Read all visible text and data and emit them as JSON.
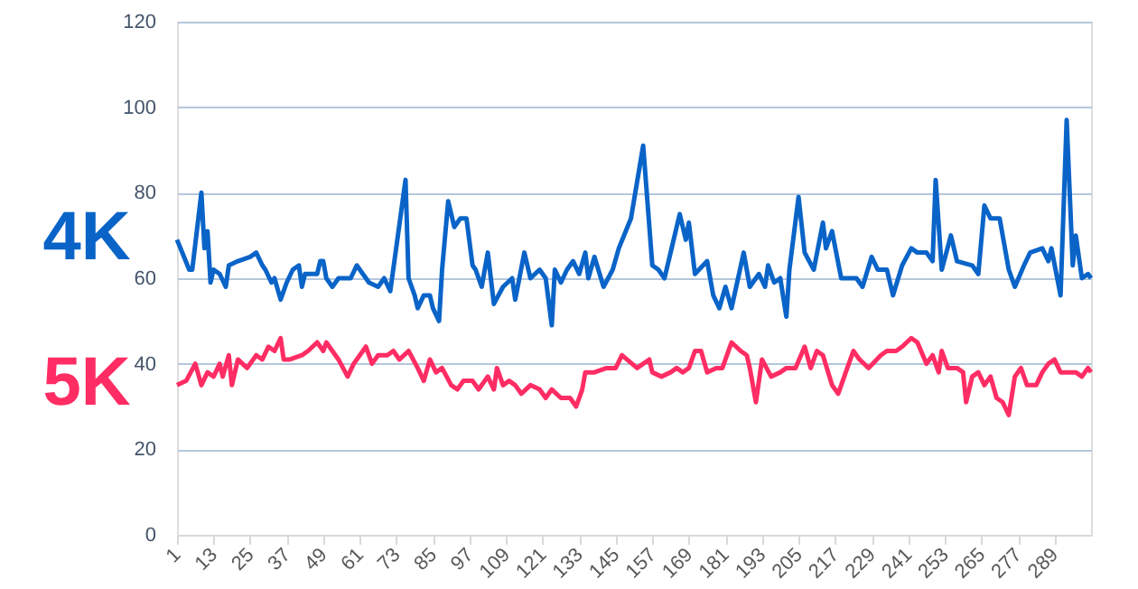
{
  "chart_data": {
    "type": "line",
    "xlim": [
      1,
      301
    ],
    "xticks": [
      1,
      13,
      25,
      37,
      49,
      61,
      73,
      85,
      97,
      109,
      121,
      133,
      145,
      157,
      169,
      181,
      193,
      205,
      217,
      229,
      241,
      253,
      265,
      277,
      289
    ],
    "ylim": [
      0,
      120
    ],
    "yticks": [
      0,
      20,
      40,
      60,
      80,
      100,
      120
    ],
    "grid": "y",
    "marker": "none",
    "line_style": "solid",
    "series": [
      {
        "name": "4K",
        "color": "#0a64c8",
        "x": [
          1,
          5,
          6,
          9,
          10,
          11,
          12,
          13,
          15,
          17,
          18,
          21,
          25,
          27,
          29,
          30,
          32,
          33,
          35,
          37,
          39,
          41,
          42,
          43,
          47,
          48,
          49,
          50,
          52,
          54,
          56,
          58,
          60,
          63,
          64,
          67,
          69,
          71,
          76,
          77,
          79,
          80,
          82,
          84,
          85,
          87,
          88,
          90,
          92,
          94,
          96,
          98,
          99,
          101,
          103,
          105,
          108,
          111,
          112,
          115,
          117,
          120,
          122,
          124,
          125,
          127,
          129,
          131,
          133,
          135,
          136,
          138,
          141,
          144,
          146,
          150,
          154,
          157,
          159,
          161,
          163,
          166,
          168,
          169,
          171,
          175,
          177,
          179,
          181,
          183,
          187,
          189,
          192,
          194,
          195,
          197,
          199,
          201,
          202,
          205,
          207,
          210,
          213,
          214,
          216,
          219,
          224,
          226,
          229,
          231,
          234,
          236,
          239,
          242,
          244,
          247,
          249,
          250,
          252,
          255,
          257,
          262,
          264,
          266,
          268,
          271,
          274,
          276,
          279,
          281,
          285,
          287,
          288,
          291,
          293,
          295,
          296,
          298,
          300,
          301
        ],
        "values": [
          69,
          62,
          62,
          80,
          67,
          71,
          59,
          62,
          61,
          58,
          63,
          64,
          65,
          66,
          63,
          62,
          59,
          60,
          55,
          59,
          62,
          63,
          58,
          61,
          61,
          64,
          64,
          60,
          58,
          60,
          60,
          60,
          63,
          60,
          59,
          58,
          60,
          57,
          83,
          60,
          56,
          53,
          56,
          56,
          53,
          50,
          62,
          78,
          72,
          74,
          74,
          63,
          62,
          58,
          66,
          54,
          58,
          60,
          55,
          66,
          60,
          62,
          60,
          49,
          62,
          59,
          62,
          64,
          61,
          66,
          60,
          65,
          58,
          62,
          67,
          74,
          91,
          63,
          62,
          60,
          66,
          75,
          69,
          73,
          61,
          64,
          56,
          53,
          58,
          53,
          66,
          58,
          61,
          58,
          63,
          59,
          60,
          51,
          62,
          79,
          66,
          62,
          73,
          67,
          71,
          60,
          60,
          58,
          65,
          62,
          62,
          56,
          63,
          67,
          66,
          66,
          64,
          83,
          62,
          70,
          64,
          63,
          61,
          77,
          74,
          74,
          62,
          58,
          63,
          66,
          67,
          64,
          67,
          56,
          97,
          63,
          70,
          60,
          61,
          60
        ]
      },
      {
        "name": "5K",
        "color": "#ff2d64",
        "x": [
          1,
          4,
          7,
          9,
          11,
          13,
          15,
          16,
          18,
          19,
          21,
          24,
          27,
          29,
          31,
          33,
          35,
          36,
          38,
          42,
          44,
          47,
          49,
          50,
          52,
          54,
          57,
          59,
          61,
          63,
          65,
          67,
          70,
          72,
          74,
          77,
          80,
          82,
          84,
          86,
          88,
          91,
          93,
          95,
          98,
          100,
          103,
          105,
          106,
          108,
          110,
          112,
          114,
          117,
          120,
          122,
          124,
          127,
          130,
          132,
          134,
          135,
          138,
          142,
          145,
          147,
          152,
          156,
          157,
          160,
          163,
          165,
          167,
          169,
          171,
          173,
          175,
          178,
          180,
          183,
          186,
          188,
          189,
          191,
          193,
          196,
          199,
          201,
          204,
          207,
          209,
          211,
          213,
          216,
          218,
          221,
          223,
          225,
          228,
          232,
          234,
          237,
          239,
          242,
          244,
          247,
          249,
          251,
          252,
          254,
          257,
          259,
          260,
          262,
          264,
          266,
          268,
          270,
          272,
          274,
          276,
          278,
          280,
          283,
          285,
          287,
          289,
          291,
          294,
          296,
          298,
          300,
          301
        ],
        "values": [
          35,
          36,
          40,
          35,
          38,
          37,
          40,
          37,
          42,
          35,
          41,
          39,
          42,
          41,
          44,
          43,
          46,
          41,
          41,
          42,
          43,
          45,
          43,
          45,
          43,
          41,
          37,
          40,
          42,
          44,
          40,
          42,
          42,
          43,
          41,
          43,
          39,
          36,
          41,
          38,
          39,
          35,
          34,
          36,
          36,
          34,
          37,
          34,
          39,
          35,
          36,
          35,
          33,
          35,
          34,
          32,
          34,
          32,
          32,
          30,
          34,
          38,
          38,
          39,
          39,
          42,
          39,
          41,
          38,
          37,
          38,
          39,
          38,
          39,
          43,
          43,
          38,
          39,
          39,
          45,
          43,
          42,
          39,
          31,
          41,
          37,
          38,
          39,
          39,
          44,
          39,
          43,
          42,
          35,
          33,
          39,
          43,
          41,
          39,
          42,
          43,
          43,
          44,
          46,
          45,
          40,
          42,
          38,
          43,
          39,
          39,
          38,
          31,
          37,
          38,
          35,
          37,
          32,
          31,
          28,
          37,
          39,
          35,
          35,
          38,
          40,
          41,
          38,
          38,
          38,
          37,
          39,
          38
        ]
      }
    ]
  }
}
